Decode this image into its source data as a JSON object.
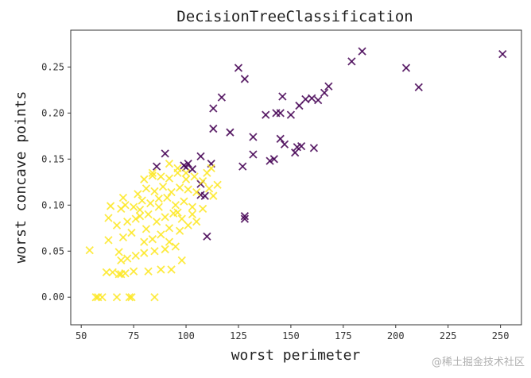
{
  "watermark": "@稀土掘金技术社区",
  "chart_data": {
    "type": "scatter",
    "title": "DecisionTreeClassification",
    "xlabel": "worst perimeter",
    "ylabel": "worst concave points",
    "xlim": [
      45,
      260
    ],
    "ylim": [
      -0.03,
      0.29
    ],
    "xticks": [
      50,
      75,
      100,
      125,
      150,
      175,
      200,
      225,
      250
    ],
    "yticks": [
      0.0,
      0.05,
      0.1,
      0.15,
      0.2,
      0.25
    ],
    "xtick_labels": [
      "50",
      "75",
      "100",
      "125",
      "150",
      "175",
      "200",
      "225",
      "250"
    ],
    "ytick_labels": [
      "0.00",
      "0.05",
      "0.10",
      "0.15",
      "0.20",
      "0.25"
    ],
    "grid": false,
    "marker": "x",
    "series": [
      {
        "color": "#440154",
        "points": [
          [
            251,
            0.264
          ],
          [
            184,
            0.267
          ],
          [
            179,
            0.256
          ],
          [
            205,
            0.249
          ],
          [
            211,
            0.228
          ],
          [
            125,
            0.249
          ],
          [
            128,
            0.237
          ],
          [
            168,
            0.229
          ],
          [
            166,
            0.222
          ],
          [
            163,
            0.214
          ],
          [
            160,
            0.216
          ],
          [
            157,
            0.215
          ],
          [
            154,
            0.208
          ],
          [
            150,
            0.198
          ],
          [
            146,
            0.218
          ],
          [
            145,
            0.2
          ],
          [
            143,
            0.2
          ],
          [
            138,
            0.198
          ],
          [
            117,
            0.217
          ],
          [
            113,
            0.205
          ],
          [
            121,
            0.179
          ],
          [
            113,
            0.183
          ],
          [
            132,
            0.174
          ],
          [
            145,
            0.172
          ],
          [
            147,
            0.166
          ],
          [
            153,
            0.163
          ],
          [
            155,
            0.164
          ],
          [
            152,
            0.157
          ],
          [
            161,
            0.162
          ],
          [
            142,
            0.15
          ],
          [
            140,
            0.148
          ],
          [
            132,
            0.155
          ],
          [
            127,
            0.142
          ],
          [
            107,
            0.153
          ],
          [
            112,
            0.145
          ],
          [
            101,
            0.145
          ],
          [
            103,
            0.139
          ],
          [
            100,
            0.141
          ],
          [
            86,
            0.142
          ],
          [
            90,
            0.156
          ],
          [
            107,
            0.123
          ],
          [
            107,
            0.111
          ],
          [
            109,
            0.11
          ],
          [
            110,
            0.066
          ],
          [
            128,
            0.088
          ],
          [
            128,
            0.085
          ],
          [
            99,
            0.143
          ]
        ]
      },
      {
        "color": "#fde725",
        "points": [
          [
            54,
            0.051
          ],
          [
            58,
            0.0
          ],
          [
            57,
            0.0
          ],
          [
            60,
            0.0
          ],
          [
            67,
            0.0
          ],
          [
            73,
            0.0
          ],
          [
            74,
            0.0
          ],
          [
            85,
            0.0
          ],
          [
            62,
            0.027
          ],
          [
            65,
            0.027
          ],
          [
            69,
            0.025
          ],
          [
            71,
            0.026
          ],
          [
            68,
            0.025
          ],
          [
            75,
            0.028
          ],
          [
            82,
            0.028
          ],
          [
            88,
            0.03
          ],
          [
            93,
            0.03
          ],
          [
            98,
            0.04
          ],
          [
            69,
            0.04
          ],
          [
            72,
            0.042
          ],
          [
            76,
            0.045
          ],
          [
            80,
            0.048
          ],
          [
            85,
            0.05
          ],
          [
            90,
            0.052
          ],
          [
            95,
            0.055
          ],
          [
            68,
            0.049
          ],
          [
            63,
            0.062
          ],
          [
            70,
            0.065
          ],
          [
            74,
            0.07
          ],
          [
            80,
            0.06
          ],
          [
            84,
            0.063
          ],
          [
            88,
            0.068
          ],
          [
            92,
            0.075
          ],
          [
            97,
            0.072
          ],
          [
            101,
            0.078
          ],
          [
            63,
            0.086
          ],
          [
            67,
            0.078
          ],
          [
            72,
            0.082
          ],
          [
            76,
            0.085
          ],
          [
            78,
            0.088
          ],
          [
            82,
            0.09
          ],
          [
            86,
            0.082
          ],
          [
            90,
            0.087
          ],
          [
            94,
            0.091
          ],
          [
            98,
            0.085
          ],
          [
            105,
            0.082
          ],
          [
            69,
            0.096
          ],
          [
            71,
            0.1
          ],
          [
            75,
            0.098
          ],
          [
            79,
            0.105
          ],
          [
            83,
            0.102
          ],
          [
            87,
            0.098
          ],
          [
            91,
            0.108
          ],
          [
            95,
            0.1
          ],
          [
            99,
            0.104
          ],
          [
            103,
            0.098
          ],
          [
            108,
            0.096
          ],
          [
            70,
            0.108
          ],
          [
            77,
            0.112
          ],
          [
            81,
            0.118
          ],
          [
            85,
            0.115
          ],
          [
            89,
            0.12
          ],
          [
            93,
            0.114
          ],
          [
            97,
            0.119
          ],
          [
            101,
            0.117
          ],
          [
            105,
            0.114
          ],
          [
            111,
            0.118
          ],
          [
            113,
            0.11
          ],
          [
            115,
            0.122
          ],
          [
            80,
            0.128
          ],
          [
            84,
            0.132
          ],
          [
            88,
            0.131
          ],
          [
            92,
            0.129
          ],
          [
            96,
            0.135
          ],
          [
            100,
            0.128
          ],
          [
            104,
            0.131
          ],
          [
            108,
            0.126
          ],
          [
            110,
            0.135
          ],
          [
            112,
            0.14
          ],
          [
            92,
            0.145
          ],
          [
            96,
            0.14
          ],
          [
            100,
            0.135
          ],
          [
            84,
            0.135
          ],
          [
            78,
            0.095
          ],
          [
            96,
            0.092
          ],
          [
            64,
            0.099
          ],
          [
            87,
            0.107
          ],
          [
            92,
            0.06
          ],
          [
            103,
            0.09
          ],
          [
            81,
            0.074
          ]
        ]
      }
    ]
  }
}
